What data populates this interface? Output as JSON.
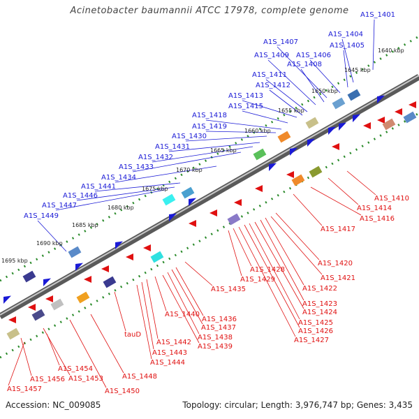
{
  "title": "Acinetobacter baumannii ATCC 17978, complete genome",
  "accession": "Accession: NC_009085",
  "topology": "Topology: circular; Length: 3,976,747 bp; Genes: 3,435",
  "colors": {
    "forward": "#1a1ad6",
    "reverse": "#e01010",
    "backbone": "#808080",
    "tick": "#2a8a2a"
  },
  "kbp_ticks": [
    "1640 kbp",
    "1645 kbp",
    "1650 kbp",
    "1655 kbp",
    "1660 kbp",
    "1665 kbp",
    "1670 kbp",
    "1675 kbp",
    "1680 kbp",
    "1685 kbp",
    "1690 kbp",
    "1695 kbp"
  ],
  "forward_genes": [
    "A1S_1401",
    "A1S_1404",
    "A1S_1405",
    "A1S_1406",
    "A1S_1407",
    "A1S_1408",
    "A1S_1409",
    "A1S_1411",
    "A1S_1412",
    "A1S_1413",
    "A1S_1415",
    "A1S_1418",
    "A1S_1419",
    "A1S_1430",
    "A1S_1431",
    "A1S_1432",
    "A1S_1433",
    "A1S_1434",
    "A1S_1441",
    "A1S_1446",
    "A1S_1447",
    "A1S_1449"
  ],
  "reverse_genes": [
    "A1S_1410",
    "A1S_1414",
    "A1S_1416",
    "A1S_1417",
    "A1S_1420",
    "A1S_1421",
    "A1S_1422",
    "A1S_1423",
    "A1S_1424",
    "A1S_1425",
    "A1S_1426",
    "A1S_1427",
    "A1S_1428",
    "A1S_1429",
    "A1S_1435",
    "A1S_1436",
    "A1S_1437",
    "A1S_1438",
    "A1S_1439",
    "A1S_1440",
    "A1S_1442",
    "A1S_1443",
    "A1S_1444",
    "tauD",
    "A1S_1448",
    "A1S_1450",
    "A1S_1453",
    "A1S_1454",
    "A1S_1456",
    "A1S_1457"
  ]
}
